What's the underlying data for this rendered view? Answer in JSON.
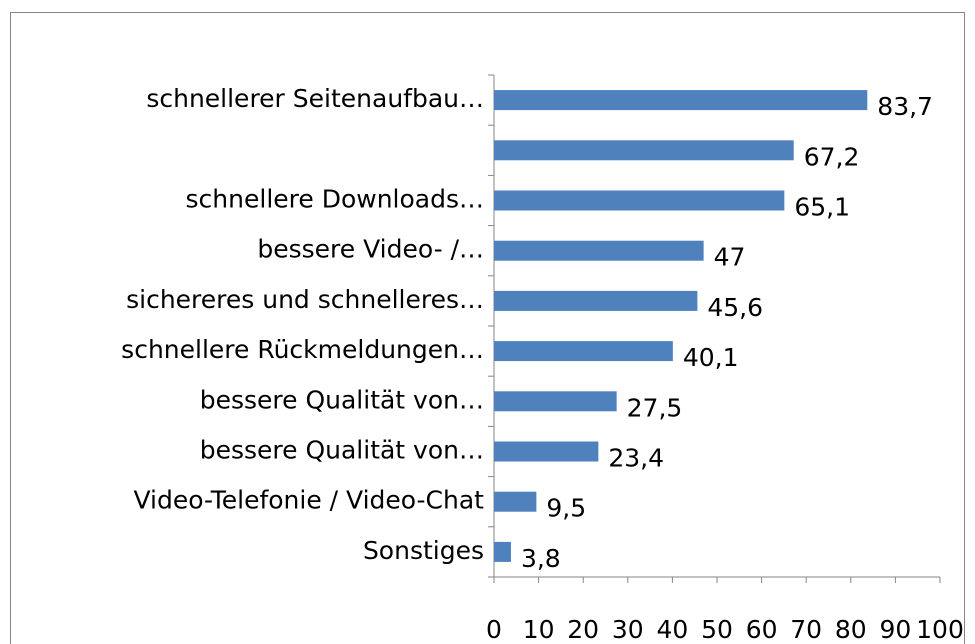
{
  "chart_data": {
    "type": "bar",
    "orientation": "horizontal",
    "categories": [
      "schnellerer Seitenaufbau…",
      null,
      "schnellere Downloads…",
      "bessere Video- /…",
      "sichereres und schnelleres…",
      "schnellere Rückmeldungen…",
      "bessere Qualität von…",
      "bessere Qualität von…",
      "Video-Telefonie / Video-Chat",
      "Sonstiges"
    ],
    "values": [
      83.7,
      67.2,
      65.1,
      47,
      45.6,
      40.1,
      27.5,
      23.4,
      9.5,
      3.8
    ],
    "value_labels": [
      "83,7",
      "67,2",
      "65,1",
      "47",
      "45,6",
      "40,1",
      "27,5",
      "23,4",
      "9,5",
      "3,8"
    ],
    "color": "#4f81bd",
    "xlim": [
      0,
      100
    ],
    "xticks": [
      0,
      10,
      20,
      30,
      40,
      50,
      60,
      70,
      80,
      90,
      100
    ]
  }
}
